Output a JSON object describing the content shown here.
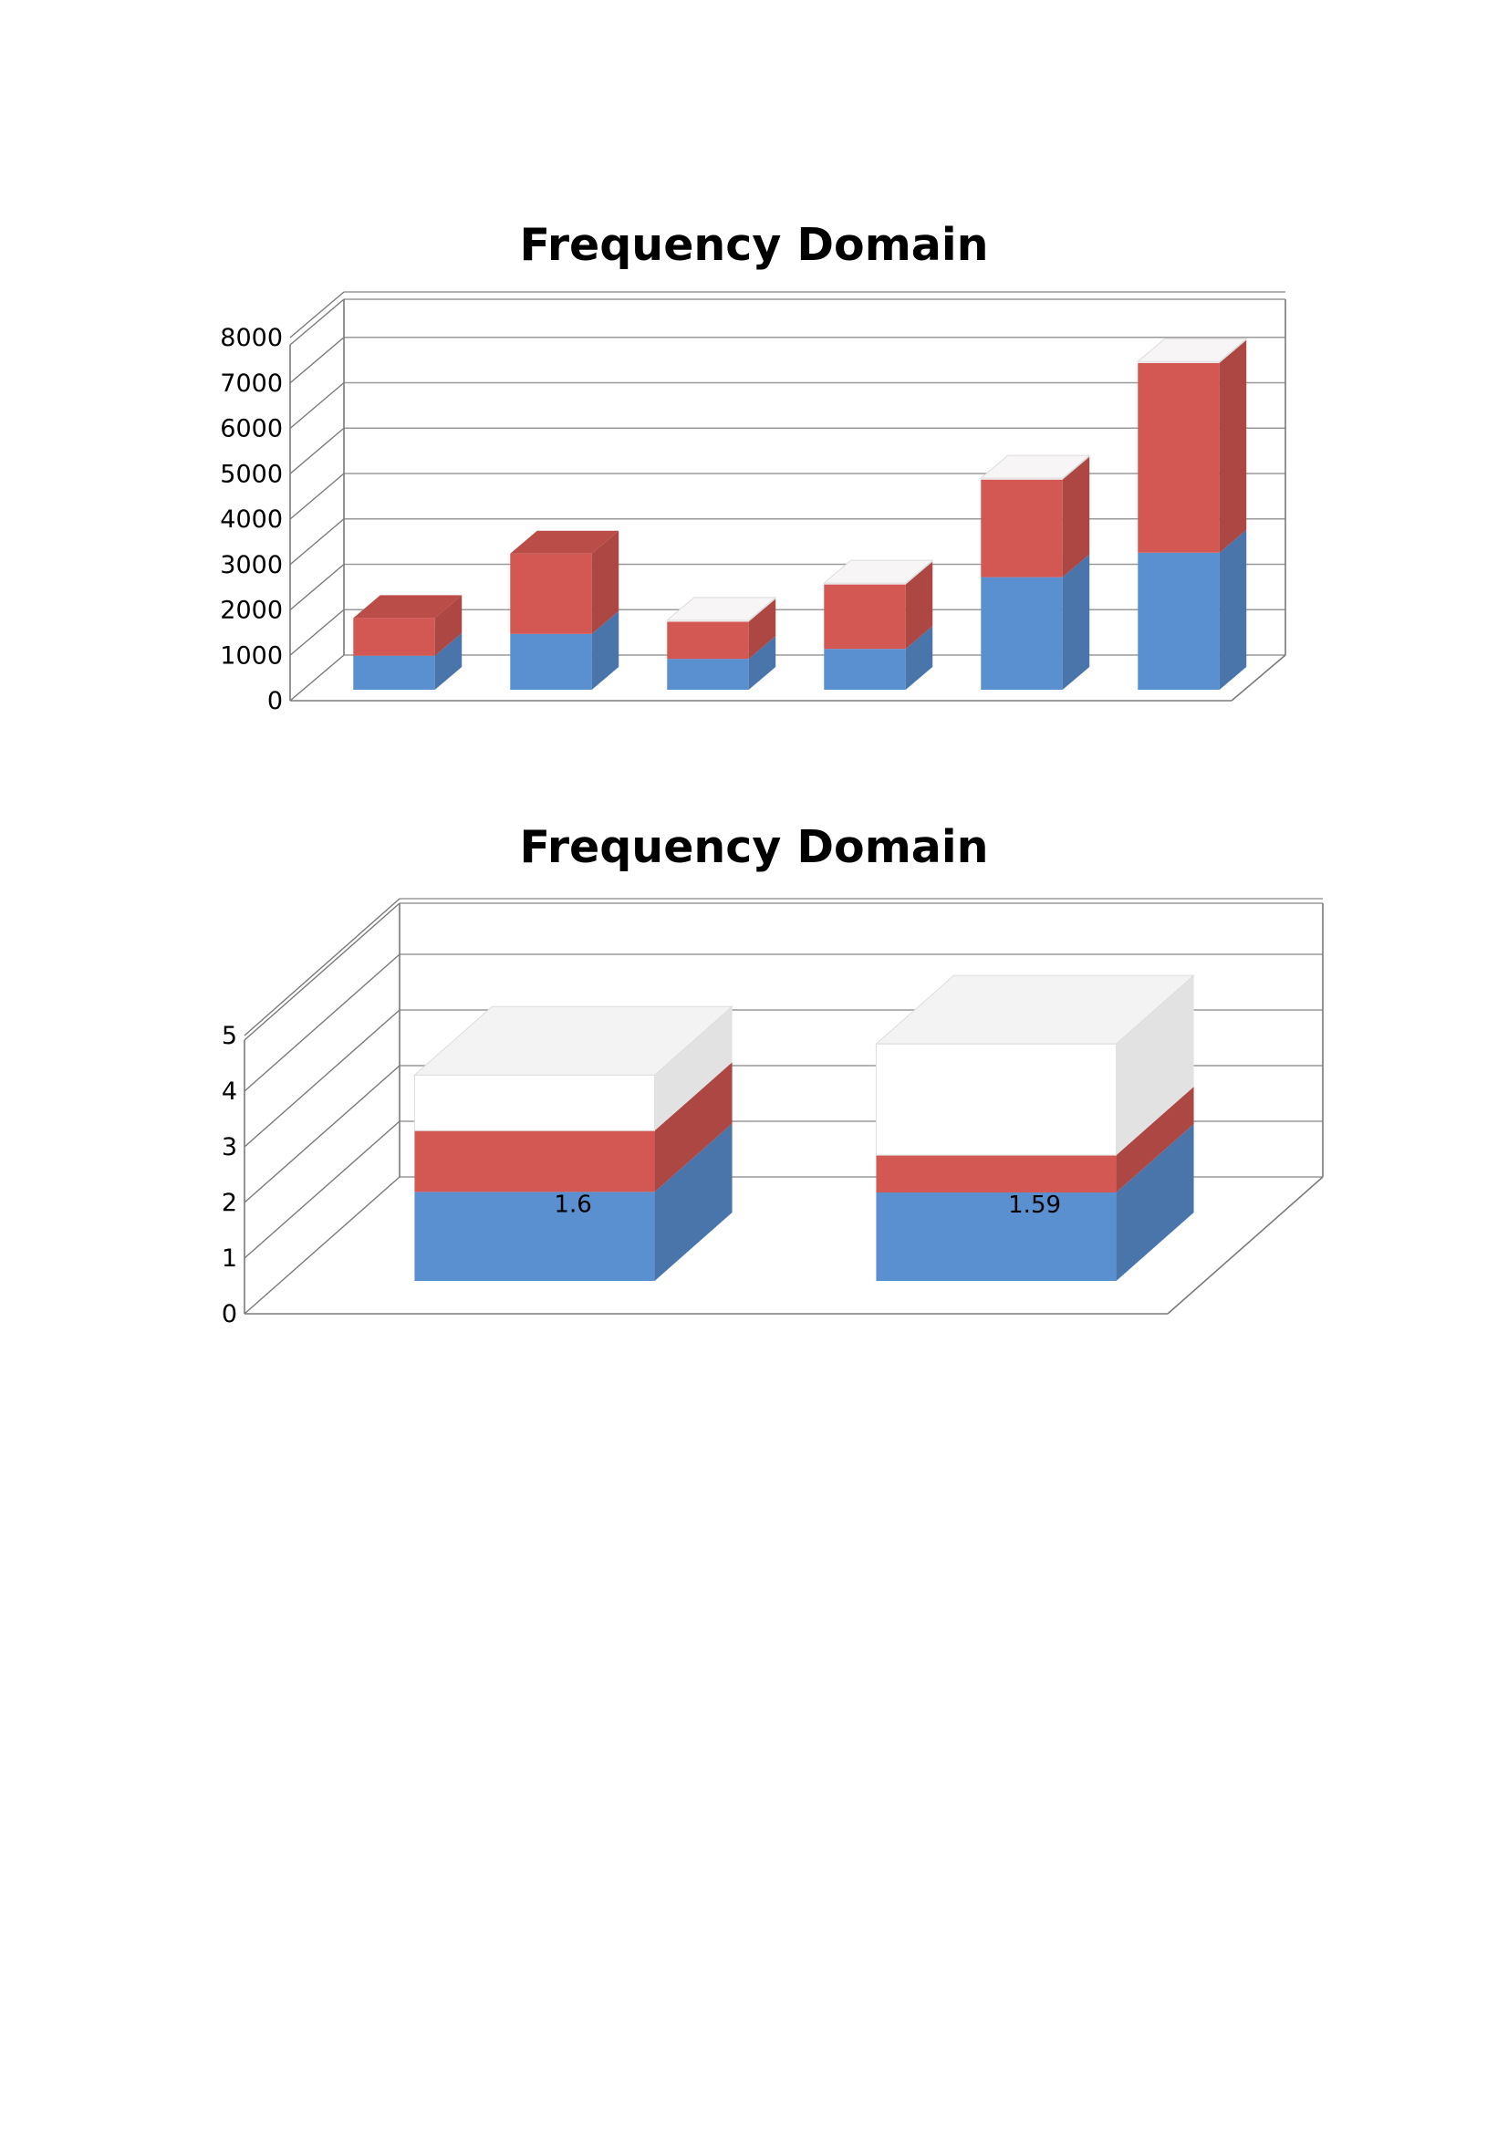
{
  "chart_data": [
    {
      "type": "bar",
      "stacked": true,
      "three_d": true,
      "title": "Frequency Domain",
      "categories": [
        "",
        "",
        "",
        "",
        "",
        ""
      ],
      "ylim": [
        0,
        8000
      ],
      "yticks": [
        "0",
        "1000",
        "2000",
        "3000",
        "4000",
        "5000",
        "6000",
        "7000",
        "8000"
      ],
      "grid": true,
      "series": [
        {
          "values": [
            750,
            1230,
            680,
            900,
            2480,
            3020
          ]
        },
        {
          "values": [
            830,
            1770,
            820,
            1420,
            2150,
            4180
          ]
        },
        {
          "values": [
            0,
            0,
            30,
            30,
            30,
            30
          ]
        }
      ],
      "colors": [
        "#5a8fd0",
        "#d35752",
        "#f4f4f4"
      ]
    },
    {
      "type": "bar",
      "stacked": true,
      "three_d": true,
      "title": "Frequency Domain",
      "categories": [
        "",
        ""
      ],
      "ylim": [
        0,
        5
      ],
      "yticks": [
        "0",
        "1",
        "2",
        "3",
        "4",
        "5"
      ],
      "grid": true,
      "series": [
        {
          "values": [
            1.6,
            1.59
          ],
          "data_labels": [
            "1.6",
            "1.59"
          ]
        },
        {
          "values": [
            1.1,
            0.67
          ]
        },
        {
          "values": [
            1.0,
            2.0
          ]
        }
      ],
      "colors": [
        "#5a8fd0",
        "#d35752",
        "#ffffff"
      ]
    }
  ]
}
